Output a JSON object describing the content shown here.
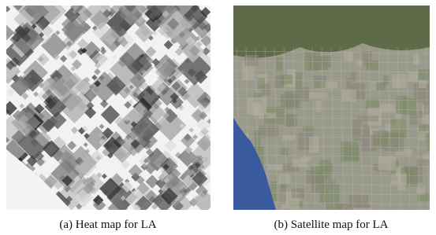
{
  "figures": [
    {
      "caption": "(a) Heat map for LA"
    },
    {
      "caption": "(b) Satellite map for LA"
    }
  ]
}
